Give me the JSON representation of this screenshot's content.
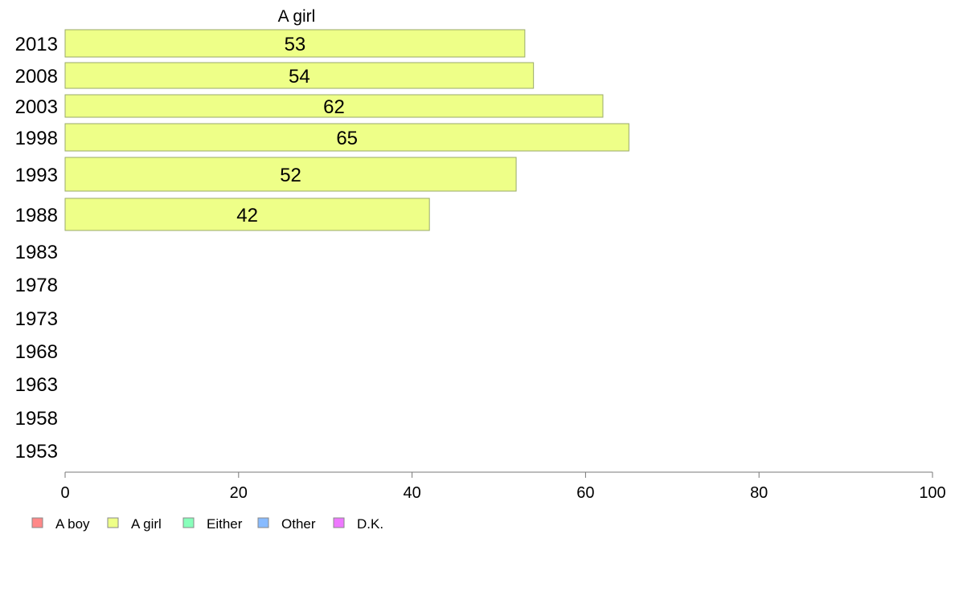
{
  "chart_data": {
    "type": "bar",
    "orientation": "horizontal",
    "title": "A girl",
    "categories": [
      "2013",
      "2008",
      "2003",
      "1998",
      "1993",
      "1988",
      "1983",
      "1978",
      "1973",
      "1968",
      "1963",
      "1958",
      "1953"
    ],
    "series": [
      {
        "name": "A girl",
        "color": "#eeff88",
        "values": [
          53,
          54,
          62,
          65,
          52,
          42,
          null,
          null,
          null,
          null,
          null,
          null,
          null
        ]
      }
    ],
    "xlim": [
      0,
      100
    ],
    "xticks": [
      0,
      20,
      40,
      60,
      80,
      100
    ],
    "grid": false,
    "legend": {
      "placement": "bottom-left",
      "items": [
        {
          "label": "A boy",
          "color": "#ff8888"
        },
        {
          "label": "A girl",
          "color": "#eeff88"
        },
        {
          "label": "Either",
          "color": "#88ffbb"
        },
        {
          "label": "Other",
          "color": "#88bbff"
        },
        {
          "label": "D.K.",
          "color": "#ee77ff"
        }
      ]
    }
  }
}
